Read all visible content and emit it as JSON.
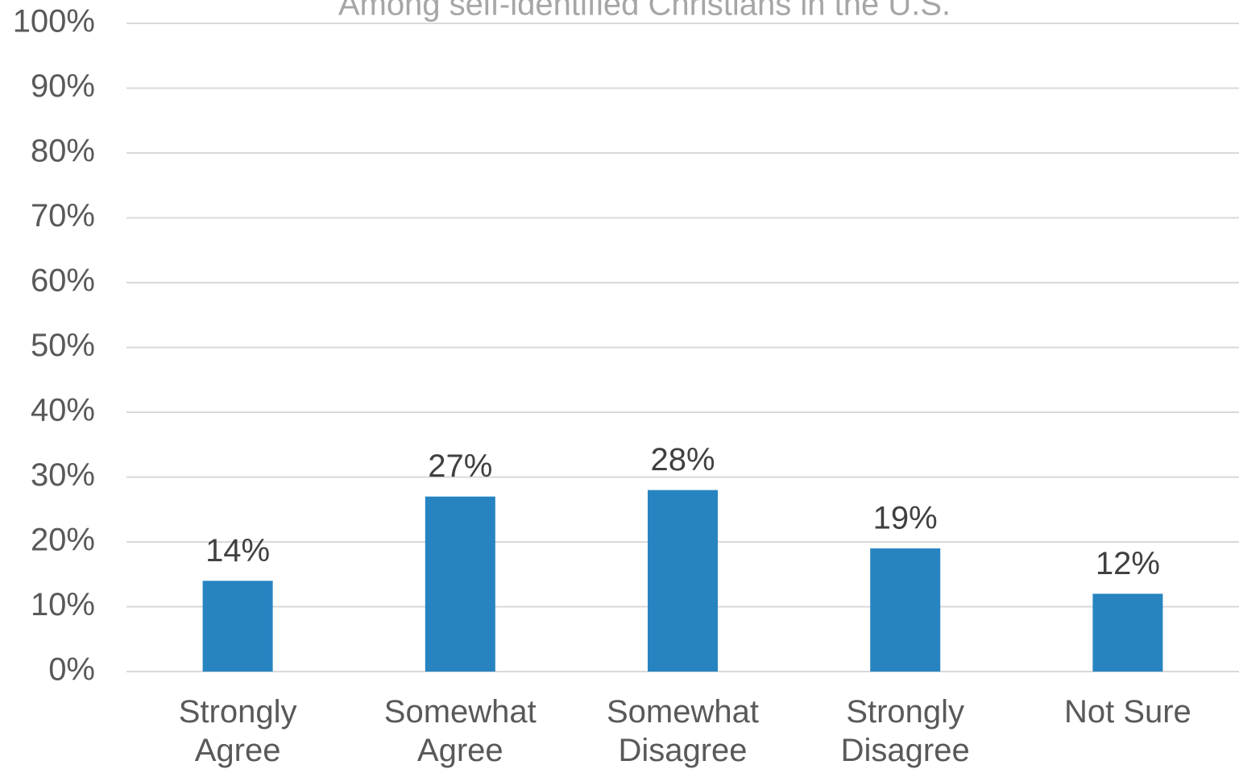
{
  "chart_data": {
    "type": "bar",
    "subtitle": "Among self-identified Christians in the U.S.",
    "categories": [
      "Strongly Agree",
      "Somewhat Agree",
      "Somewhat Disagree",
      "Strongly Disagree",
      "Not Sure"
    ],
    "values": [
      14,
      27,
      28,
      19,
      12
    ],
    "value_labels": [
      "14%",
      "27%",
      "28%",
      "19%",
      "12%"
    ],
    "color": "#2784c1",
    "ylim": [
      0,
      100
    ],
    "yticks": [
      {
        "value": 0,
        "label": "0%"
      },
      {
        "value": 10,
        "label": "10%"
      },
      {
        "value": 20,
        "label": "20%"
      },
      {
        "value": 30,
        "label": "30%"
      },
      {
        "value": 40,
        "label": "40%"
      },
      {
        "value": 50,
        "label": "50%"
      },
      {
        "value": 60,
        "label": "60%"
      },
      {
        "value": 70,
        "label": "70%"
      },
      {
        "value": 80,
        "label": "80%"
      },
      {
        "value": 90,
        "label": "90%"
      },
      {
        "value": 100,
        "label": "100%"
      }
    ],
    "grid": true
  }
}
